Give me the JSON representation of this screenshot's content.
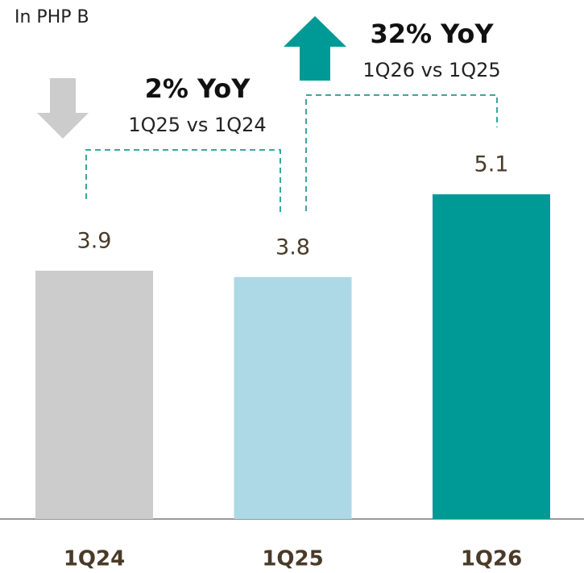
{
  "chart_data": {
    "type": "bar",
    "subtitle": "In PHP B",
    "categories": [
      "1Q24",
      "1Q25",
      "1Q26"
    ],
    "values": [
      3.9,
      3.8,
      5.1
    ],
    "colors": [
      "#cccccc",
      "#add8e6",
      "#009a96"
    ],
    "annotations": [
      {
        "title": "2% YoY",
        "text": "1Q25 vs 1Q24"
      },
      {
        "title": "32% YoY",
        "text": "1Q26 vs 1Q25"
      }
    ]
  }
}
